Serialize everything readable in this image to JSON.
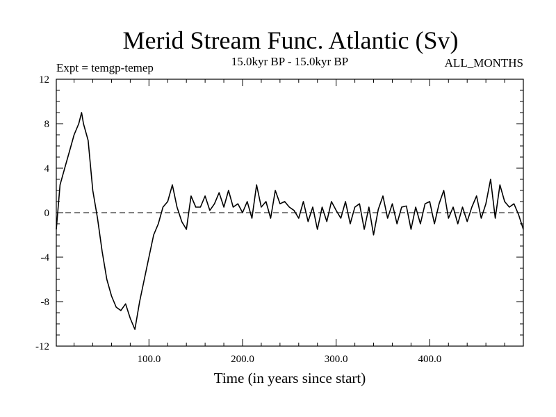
{
  "chart_data": {
    "type": "line",
    "title": "Merid Stream Func. Atlantic (Sv)",
    "subtitle": "15.0kyr BP - 15.0kyr BP",
    "annotation_left": "Expt = temgp-temep",
    "annotation_right": "ALL_MONTHS",
    "xlabel": "Time (in years since start)",
    "ylabel": "",
    "xlim": [
      1,
      500
    ],
    "ylim": [
      -12,
      12
    ],
    "x_ticks": [
      100,
      200,
      300,
      400
    ],
    "x_tick_labels": [
      "100.0",
      "200.0",
      "300.0",
      "400.0"
    ],
    "y_ticks": [
      -12,
      -8,
      -4,
      0,
      4,
      8,
      12
    ],
    "y_tick_labels": [
      "-12",
      "-8",
      "-4",
      "0",
      "4",
      "8",
      "12"
    ],
    "zero_line": {
      "value": 0,
      "style": "dashed"
    },
    "series": [
      {
        "name": "temgp-temep",
        "x": [
          1,
          5,
          10,
          15,
          20,
          25,
          28,
          30,
          35,
          40,
          45,
          50,
          55,
          60,
          65,
          70,
          75,
          80,
          85,
          90,
          95,
          100,
          105,
          110,
          115,
          120,
          125,
          130,
          135,
          140,
          145,
          150,
          155,
          160,
          165,
          170,
          175,
          180,
          185,
          190,
          195,
          200,
          205,
          210,
          215,
          220,
          225,
          230,
          235,
          240,
          245,
          250,
          255,
          260,
          265,
          270,
          275,
          280,
          285,
          290,
          295,
          300,
          305,
          310,
          315,
          320,
          325,
          330,
          335,
          340,
          345,
          350,
          355,
          360,
          365,
          370,
          375,
          380,
          385,
          390,
          395,
          400,
          405,
          410,
          415,
          420,
          425,
          430,
          435,
          440,
          445,
          450,
          455,
          460,
          465,
          470,
          475,
          480,
          485,
          490,
          495,
          500
        ],
        "values": [
          -1.5,
          2.5,
          4,
          5.5,
          7,
          8,
          9,
          8,
          6.5,
          2,
          -0.5,
          -3.5,
          -6,
          -7.5,
          -8.5,
          -8.8,
          -8.2,
          -9.5,
          -10.5,
          -8,
          -6,
          -4,
          -2,
          -1,
          0.5,
          1,
          2.5,
          0.5,
          -0.8,
          -1.5,
          1.5,
          0.5,
          0.5,
          1.5,
          0.2,
          0.8,
          1.8,
          0.5,
          2,
          0.5,
          0.8,
          0,
          1,
          -0.5,
          2.5,
          0.5,
          1,
          -0.5,
          2,
          0.8,
          1,
          0.5,
          0.2,
          -0.5,
          1,
          -0.8,
          0.5,
          -1.5,
          0.5,
          -0.8,
          1,
          0.2,
          -0.5,
          1,
          -1,
          0.5,
          0.8,
          -1.5,
          0.5,
          -2,
          0.3,
          1.5,
          -0.5,
          0.8,
          -1,
          0.5,
          0.6,
          -1.5,
          0.5,
          -1,
          0.8,
          1,
          -1,
          0.8,
          2,
          -0.5,
          0.5,
          -1,
          0.5,
          -0.8,
          0.5,
          1.5,
          -0.5,
          0.8,
          3,
          -0.5,
          2.5,
          1,
          0.5,
          0.8,
          -0.2,
          -1.5
        ]
      }
    ]
  }
}
